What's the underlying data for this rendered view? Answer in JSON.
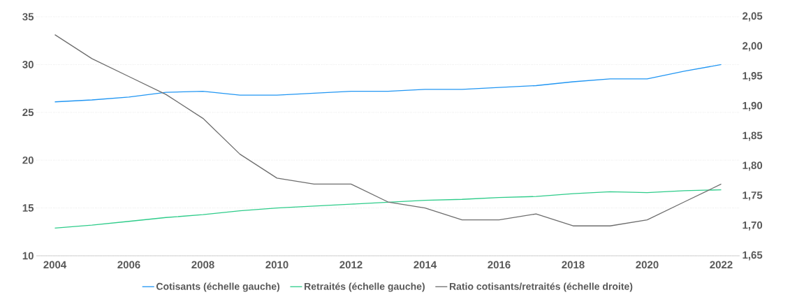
{
  "chart_data": {
    "type": "line",
    "x": [
      2004,
      2005,
      2006,
      2007,
      2008,
      2009,
      2010,
      2011,
      2012,
      2013,
      2014,
      2015,
      2016,
      2017,
      2018,
      2019,
      2020,
      2021,
      2022
    ],
    "series": [
      {
        "name": "Cotisants (échelle gauche)",
        "color": "#2196f3",
        "values": [
          26.1,
          26.3,
          26.6,
          27.1,
          27.2,
          26.8,
          26.8,
          27.0,
          27.2,
          27.2,
          27.4,
          27.4,
          27.6,
          27.8,
          28.2,
          28.5,
          28.5,
          29.3,
          30.0
        ]
      },
      {
        "name": "Retraités (échelle gauche)",
        "color": "#2ecc8a",
        "values": [
          12.9,
          13.2,
          13.6,
          14.0,
          14.3,
          14.7,
          15.0,
          15.2,
          15.4,
          15.6,
          15.8,
          15.9,
          16.1,
          16.2,
          16.5,
          16.7,
          16.6,
          16.8,
          16.9
        ]
      },
      {
        "name": "Ratio cotisants/retraités (échelle droite)",
        "color": "#6d6d6d",
        "axis": "y2",
        "values": [
          2.02,
          1.98,
          1.95,
          1.92,
          1.88,
          1.82,
          1.78,
          1.77,
          1.77,
          1.74,
          1.73,
          1.71,
          1.71,
          1.72,
          1.7,
          1.7,
          1.71,
          1.74,
          1.77
        ]
      }
    ],
    "xlim": [
      2003.5,
      2022.5
    ],
    "xticks": [
      2004,
      2006,
      2008,
      2010,
      2012,
      2014,
      2016,
      2018,
      2020,
      2022
    ],
    "ylim": [
      10,
      35
    ],
    "yticks": [
      10,
      15,
      20,
      25,
      30,
      35
    ],
    "y2lim": [
      1.65,
      2.05
    ],
    "y2ticks": [
      {
        "value": 1.65,
        "label": "1,65"
      },
      {
        "value": 1.7,
        "label": "1,70"
      },
      {
        "value": 1.75,
        "label": "1,75"
      },
      {
        "value": 1.8,
        "label": "1,80"
      },
      {
        "value": 1.85,
        "label": "1,85"
      },
      {
        "value": 1.9,
        "label": "1,90"
      },
      {
        "value": 1.95,
        "label": "1,95"
      },
      {
        "value": 2.0,
        "label": "2,00"
      },
      {
        "value": 2.05,
        "label": "2,05"
      }
    ],
    "grid": "y",
    "legend": "bottom"
  }
}
